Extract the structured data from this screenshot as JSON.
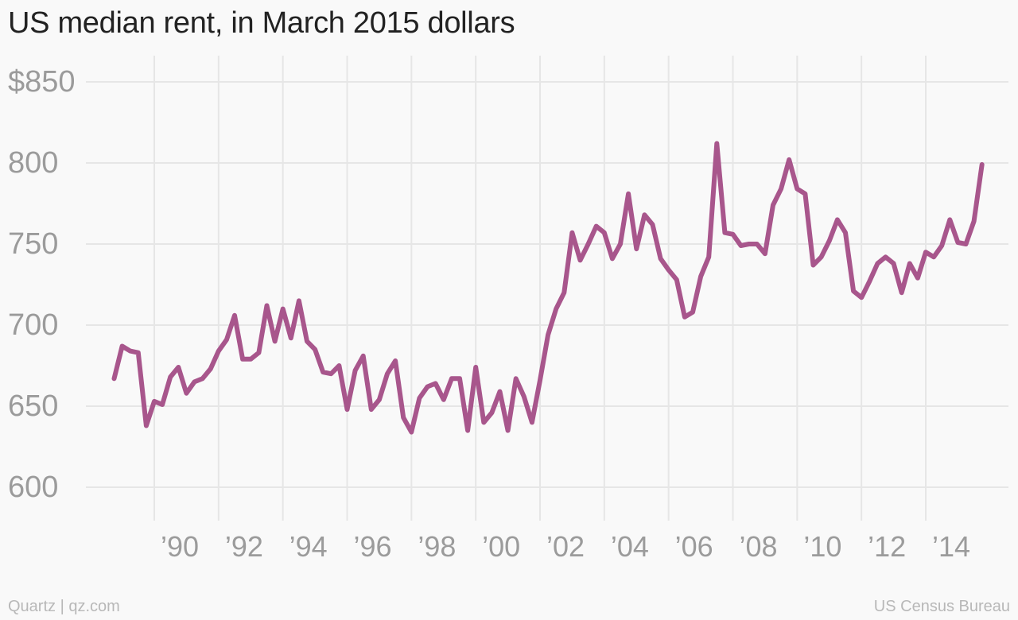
{
  "title": "US median rent, in March 2015 dollars",
  "footer": {
    "credit": "Quartz | qz.com",
    "source": "US Census Bureau"
  },
  "colors": {
    "line": "#a8568c",
    "grid": "#e6e6e6",
    "tick_label": "#9b9b9b",
    "background": "#f9f9f9"
  },
  "chart_data": {
    "type": "line",
    "title": "US median rent, in March 2015 dollars",
    "xlabel": "",
    "ylabel": "",
    "ylim": [
      600,
      850
    ],
    "xlim": [
      1988.0,
      2015.5
    ],
    "grid": true,
    "legend": "none",
    "y_ticks": [
      600,
      650,
      700,
      750,
      800,
      850
    ],
    "y_tick_labels": [
      "600",
      "650",
      "700",
      "750",
      "800",
      "$850"
    ],
    "x_ticks": [
      1990,
      1992,
      1994,
      1996,
      1998,
      2000,
      2002,
      2004,
      2006,
      2008,
      2010,
      2012,
      2014
    ],
    "x_tick_labels": [
      "’90",
      "’92",
      "’94",
      "’96",
      "’98",
      "’00",
      "’02",
      "’04",
      "’06",
      "’08",
      "’10",
      "’12",
      "’14"
    ],
    "series": [
      {
        "x": [
          1988.0,
          1988.25,
          1988.5,
          1988.75,
          1989.0,
          1989.25,
          1989.5,
          1989.75,
          1990.0,
          1990.25,
          1990.5,
          1990.75,
          1991.0,
          1991.25,
          1991.5,
          1991.75,
          1992.0,
          1992.25,
          1992.5,
          1992.75,
          1993.0,
          1993.25,
          1993.5,
          1993.75,
          1994.0,
          1994.25,
          1994.5,
          1994.75,
          1995.0,
          1995.25,
          1995.5,
          1995.75,
          1996.0,
          1996.25,
          1996.5,
          1996.75,
          1997.0,
          1997.25,
          1997.5,
          1997.75,
          1998.0,
          1998.25,
          1998.5,
          1998.75,
          1999.0,
          1999.25,
          1999.5,
          1999.75,
          2000.0,
          2000.25,
          2000.5,
          2000.75,
          2001.0,
          2001.25,
          2001.5,
          2001.75,
          2002.0,
          2002.25,
          2002.5,
          2002.75,
          2003.0,
          2003.25,
          2003.5,
          2003.75,
          2004.0,
          2004.25,
          2004.5,
          2004.75,
          2005.0,
          2005.25,
          2005.5,
          2005.75,
          2006.0,
          2006.25,
          2006.5,
          2006.75,
          2007.0,
          2007.25,
          2007.5,
          2007.75,
          2008.0,
          2008.25,
          2008.5,
          2008.75,
          2009.0,
          2009.25,
          2009.5,
          2009.75,
          2010.0,
          2010.25,
          2010.5,
          2010.75,
          2011.0,
          2011.25,
          2011.5,
          2011.75,
          2012.0,
          2012.25,
          2012.5,
          2012.75,
          2013.0,
          2013.25,
          2013.5,
          2013.75,
          2014.0,
          2014.25,
          2014.5,
          2014.75,
          2015.0
        ],
        "values": [
          667,
          687,
          684,
          683,
          638,
          653,
          651,
          668,
          674,
          658,
          665,
          667,
          673,
          684,
          691,
          706,
          679,
          679,
          683,
          712,
          690,
          710,
          692,
          715,
          690,
          685,
          671,
          670,
          675,
          648,
          672,
          681,
          648,
          654,
          670,
          678,
          643,
          634,
          655,
          662,
          664,
          654,
          667,
          667,
          635,
          674,
          640,
          646,
          659,
          635,
          667,
          656,
          640,
          666,
          694,
          710,
          720,
          757,
          740,
          750,
          761,
          757,
          741,
          750,
          781,
          747,
          768,
          762,
          741,
          734,
          728,
          705,
          708,
          730,
          742,
          812,
          757,
          756,
          749,
          750,
          750,
          744,
          774,
          784,
          802,
          784,
          781,
          737,
          742,
          752,
          765,
          757,
          721,
          717,
          727,
          738,
          742,
          738,
          720,
          738,
          729,
          745,
          742,
          749,
          765,
          751,
          750,
          764,
          799
        ]
      }
    ]
  }
}
